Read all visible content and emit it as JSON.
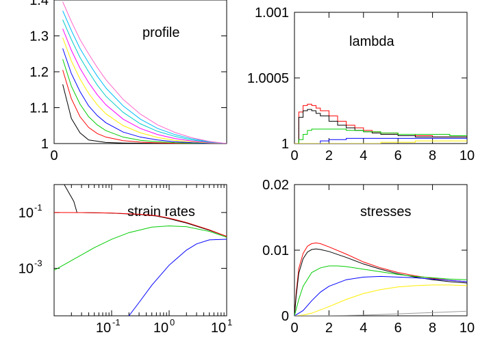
{
  "chart_data": [
    {
      "type": "line",
      "title": "profile",
      "xlabel": "",
      "ylabel": "",
      "xlim": [
        0,
        10
      ],
      "ylim": [
        1,
        1.4
      ],
      "xticks": [
        {
          "value": 0,
          "label": "0"
        }
      ],
      "yticks": [
        {
          "value": 1.0,
          "label": "1"
        },
        {
          "value": 1.1,
          "label": "1.1"
        },
        {
          "value": 1.2,
          "label": "1.2"
        },
        {
          "value": 1.3,
          "label": "1.3"
        },
        {
          "value": 1.4,
          "label": "1.4"
        }
      ],
      "series": [
        {
          "color": "#000000",
          "x": [
            0.5,
            1,
            1.5,
            2,
            3,
            4,
            5,
            6,
            7,
            8,
            9,
            10
          ],
          "y": [
            1.165,
            1.07,
            1.03,
            1.01,
            1.003,
            1.0015,
            1.001,
            1.0006,
            1.0004,
            1.0002,
            1.0001,
            1.0
          ]
        },
        {
          "color": "#ff0000",
          "x": [
            0.5,
            1,
            1.5,
            2,
            2.5,
            3,
            4,
            5,
            6,
            7,
            8,
            9,
            10
          ],
          "y": [
            1.205,
            1.125,
            1.075,
            1.045,
            1.028,
            1.018,
            1.008,
            1.004,
            1.002,
            1.001,
            1.0005,
            1.0002,
            1.0
          ]
        },
        {
          "color": "#00cc00",
          "x": [
            0.5,
            1,
            1.5,
            2,
            2.5,
            3,
            4,
            5,
            6,
            7,
            8,
            9,
            10
          ],
          "y": [
            1.235,
            1.16,
            1.11,
            1.075,
            1.052,
            1.036,
            1.018,
            1.009,
            1.005,
            1.0025,
            1.0012,
            1.0005,
            1.0
          ]
        },
        {
          "color": "#0000ff",
          "x": [
            0.5,
            1,
            1.5,
            2,
            2.5,
            3,
            4,
            5,
            6,
            7,
            8,
            9,
            10
          ],
          "y": [
            1.265,
            1.195,
            1.145,
            1.105,
            1.078,
            1.058,
            1.032,
            1.018,
            1.01,
            1.005,
            1.0025,
            1.001,
            1.0
          ]
        },
        {
          "color": "#ffee00",
          "x": [
            0.5,
            1,
            1.5,
            2,
            2.5,
            3,
            4,
            5,
            6,
            7,
            8,
            9,
            10
          ],
          "y": [
            1.295,
            1.23,
            1.18,
            1.14,
            1.108,
            1.083,
            1.05,
            1.03,
            1.017,
            1.009,
            1.0045,
            1.002,
            1.0
          ]
        },
        {
          "color": "#ff00ff",
          "x": [
            0.5,
            1,
            1.5,
            2,
            2.5,
            3,
            4,
            5,
            6,
            7,
            8,
            9,
            10
          ],
          "y": [
            1.32,
            1.26,
            1.21,
            1.17,
            1.136,
            1.108,
            1.068,
            1.042,
            1.025,
            1.014,
            1.007,
            1.003,
            1.0
          ]
        },
        {
          "color": "#00cccc",
          "x": [
            0.5,
            1,
            1.5,
            2,
            2.5,
            3,
            4,
            5,
            6,
            7,
            8,
            9,
            10
          ],
          "y": [
            1.345,
            1.29,
            1.24,
            1.2,
            1.163,
            1.132,
            1.087,
            1.055,
            1.034,
            1.02,
            1.01,
            1.004,
            1.0
          ]
        },
        {
          "color": "#00bbff",
          "x": [
            0.5,
            1,
            1.5,
            2,
            2.5,
            3,
            4,
            5,
            6,
            7,
            8,
            9,
            10
          ],
          "y": [
            1.37,
            1.315,
            1.265,
            1.225,
            1.188,
            1.155,
            1.105,
            1.068,
            1.042,
            1.025,
            1.013,
            1.005,
            1.0
          ]
        },
        {
          "color": "#ff66cc",
          "x": [
            0.5,
            1,
            1.5,
            2,
            2.5,
            3,
            4,
            5,
            6,
            7,
            8,
            9,
            10
          ],
          "y": [
            1.395,
            1.34,
            1.29,
            1.25,
            1.212,
            1.178,
            1.123,
            1.082,
            1.052,
            1.031,
            1.016,
            1.006,
            1.0
          ]
        }
      ]
    },
    {
      "type": "line",
      "title": "lambda",
      "xlabel": "",
      "ylabel": "",
      "xlim": [
        0,
        10
      ],
      "ylim": [
        1,
        1.001
      ],
      "xticks": [
        {
          "value": 0,
          "label": "0"
        },
        {
          "value": 2,
          "label": "2"
        },
        {
          "value": 4,
          "label": "4"
        },
        {
          "value": 6,
          "label": "6"
        },
        {
          "value": 8,
          "label": "8"
        },
        {
          "value": 10,
          "label": "10"
        }
      ],
      "yticks": [
        {
          "value": 1.0,
          "label": "1"
        },
        {
          "value": 1.0005,
          "label": "1.0005"
        },
        {
          "value": 1.001,
          "label": "1.001"
        }
      ],
      "series": [
        {
          "color": "#ff0000",
          "step": true,
          "x": [
            0,
            0.25,
            0.5,
            0.75,
            1,
            1.25,
            1.5,
            2,
            2.5,
            3,
            3.5,
            4,
            4.5,
            5,
            6,
            7,
            8,
            9,
            10
          ],
          "y": [
            1.0,
            1.00024,
            1.00029,
            1.0003,
            1.00029,
            1.00027,
            1.00025,
            1.00021,
            1.00017,
            1.00014,
            1.00012,
            1.0001,
            1.00009,
            1.00008,
            1.00007,
            1.00006,
            1.00005,
            1.00005,
            1.00005
          ]
        },
        {
          "color": "#000000",
          "step": true,
          "x": [
            0,
            0.25,
            0.5,
            0.75,
            1,
            1.25,
            1.5,
            2,
            2.5,
            3,
            3.5,
            4,
            4.5,
            5,
            6,
            7,
            8,
            9,
            10
          ],
          "y": [
            1.0,
            1.0002,
            1.00025,
            1.00026,
            1.00025,
            1.00023,
            1.00021,
            1.00017,
            1.00014,
            1.00012,
            1.0001,
            1.00009,
            1.00008,
            1.00007,
            1.00006,
            1.00005,
            1.00005,
            1.00005,
            1.00005
          ]
        },
        {
          "color": "#00cc00",
          "step": true,
          "x": [
            0,
            0.25,
            0.5,
            0.75,
            1,
            1.5,
            2,
            2.5,
            3,
            3.5,
            4,
            5,
            6,
            7,
            8,
            9,
            10
          ],
          "y": [
            1.0,
            1.00003,
            1.00007,
            1.0001,
            1.00011,
            1.00011,
            1.00011,
            1.00011,
            1.0001,
            1.0001,
            1.00009,
            1.00008,
            1.00007,
            1.00007,
            1.00007,
            1.00006,
            1.00006
          ]
        },
        {
          "color": "#0000ff",
          "step": true,
          "x": [
            0,
            1,
            1.5,
            2,
            3,
            4,
            5,
            6,
            7,
            8,
            9,
            10
          ],
          "y": [
            1.0,
            1.0,
            1.00002,
            1.00003,
            1.00004,
            1.00004,
            1.00004,
            1.00004,
            1.00004,
            1.00004,
            1.00004,
            1.00004
          ]
        },
        {
          "color": "#ffee00",
          "step": true,
          "x": [
            0,
            4,
            5,
            6,
            7,
            8,
            9,
            10
          ],
          "y": [
            1.0,
            1.0,
            1.00001,
            1.00001,
            1.00002,
            1.00002,
            1.00002,
            1.00002
          ]
        }
      ]
    },
    {
      "type": "line",
      "title": "strain rates",
      "xlabel": "",
      "ylabel": "",
      "xscale": "log",
      "yscale": "log",
      "xlim": [
        0.01,
        10
      ],
      "ylim": [
        2e-05,
        1
      ],
      "xticks": [
        {
          "value": 0.1,
          "base": "10",
          "exp": "-1"
        },
        {
          "value": 1,
          "base": "10",
          "exp": "0"
        },
        {
          "value": 10,
          "base": "10",
          "exp": "1"
        }
      ],
      "yticks": [
        {
          "value": 0.1,
          "base": "10",
          "exp": "-1"
        },
        {
          "value": 0.001,
          "base": "10",
          "exp": "-3"
        }
      ],
      "series": [
        {
          "color": "#000000",
          "x": [
            0.015,
            0.022,
            0.025,
            0.05,
            0.1,
            0.3,
            0.6,
            1,
            2,
            5,
            10
          ],
          "y": [
            1.0,
            0.25,
            0.1,
            0.098,
            0.095,
            0.085,
            0.075,
            0.06,
            0.042,
            0.023,
            0.014
          ]
        },
        {
          "color": "#ff0000",
          "x": [
            0.01,
            0.03,
            0.1,
            0.3,
            0.6,
            1,
            2,
            5,
            10
          ],
          "y": [
            0.1,
            0.099,
            0.096,
            0.087,
            0.077,
            0.063,
            0.044,
            0.024,
            0.014
          ]
        },
        {
          "color": "#00cc00",
          "x": [
            0.01,
            0.02,
            0.05,
            0.1,
            0.2,
            0.5,
            1,
            2,
            5,
            10
          ],
          "y": [
            0.00085,
            0.0019,
            0.0055,
            0.011,
            0.019,
            0.03,
            0.033,
            0.031,
            0.021,
            0.013
          ]
        },
        {
          "color": "#0000ff",
          "x": [
            0.2,
            0.3,
            0.5,
            1,
            2,
            3,
            5,
            10
          ],
          "y": [
            2e-05,
            6e-05,
            0.00025,
            0.0013,
            0.0045,
            0.0075,
            0.0105,
            0.011
          ]
        }
      ]
    },
    {
      "type": "line",
      "title": "stresses",
      "xlabel": "",
      "ylabel": "",
      "xlim": [
        0,
        10
      ],
      "ylim": [
        0,
        0.02
      ],
      "xticks": [
        {
          "value": 0,
          "label": "0"
        },
        {
          "value": 2,
          "label": "2"
        },
        {
          "value": 4,
          "label": "4"
        },
        {
          "value": 6,
          "label": "6"
        },
        {
          "value": 8,
          "label": "8"
        },
        {
          "value": 10,
          "label": "10"
        }
      ],
      "yticks": [
        {
          "value": 0,
          "label": "0"
        },
        {
          "value": 0.01,
          "label": "0.01"
        },
        {
          "value": 0.02,
          "label": "0.02"
        }
      ],
      "series": [
        {
          "color": "#ff0000",
          "x": [
            0,
            0.1,
            0.25,
            0.5,
            0.75,
            1,
            1.25,
            1.5,
            2,
            3,
            4,
            5,
            6,
            7,
            8,
            9,
            10
          ],
          "y": [
            0,
            0.0035,
            0.0072,
            0.0095,
            0.0106,
            0.011,
            0.0111,
            0.011,
            0.0105,
            0.0094,
            0.0082,
            0.0073,
            0.0066,
            0.0061,
            0.0057,
            0.0054,
            0.0052
          ]
        },
        {
          "color": "#000000",
          "x": [
            0,
            0.1,
            0.25,
            0.5,
            0.75,
            1,
            1.25,
            1.5,
            2,
            3,
            4,
            5,
            6,
            7,
            8,
            9,
            10
          ],
          "y": [
            0,
            0.003,
            0.0065,
            0.0087,
            0.0097,
            0.0101,
            0.0102,
            0.0101,
            0.0098,
            0.0089,
            0.0079,
            0.0071,
            0.0064,
            0.0059,
            0.0055,
            0.0052,
            0.005
          ]
        },
        {
          "color": "#00cc00",
          "x": [
            0,
            0.25,
            0.5,
            1,
            1.5,
            2,
            2.5,
            3,
            4,
            5,
            6,
            7,
            8,
            9,
            10
          ],
          "y": [
            0,
            0.0025,
            0.0045,
            0.0066,
            0.0073,
            0.0076,
            0.0076,
            0.0075,
            0.0071,
            0.0067,
            0.0063,
            0.006,
            0.0058,
            0.0056,
            0.0055
          ]
        },
        {
          "color": "#0000ff",
          "x": [
            0,
            0.5,
            1,
            1.5,
            2,
            3,
            4,
            5,
            6,
            7,
            8,
            9,
            10
          ],
          "y": [
            0,
            0.0008,
            0.0023,
            0.0036,
            0.0045,
            0.0055,
            0.0059,
            0.006,
            0.0059,
            0.0058,
            0.0056,
            0.0054,
            0.0052
          ]
        },
        {
          "color": "#ffee00",
          "x": [
            0,
            0.5,
            1,
            2,
            3,
            4,
            5,
            6,
            7,
            8,
            9,
            10
          ],
          "y": [
            0,
            0.0001,
            0.0004,
            0.0014,
            0.0025,
            0.0034,
            0.004,
            0.0044,
            0.0046,
            0.0047,
            0.0047,
            0.0046
          ]
        },
        {
          "color": "#999999",
          "x": [
            0,
            2,
            4,
            6,
            8,
            10
          ],
          "y": [
            0,
            2e-05,
            0.0001,
            0.0003,
            0.0005,
            0.0007
          ]
        }
      ]
    }
  ]
}
